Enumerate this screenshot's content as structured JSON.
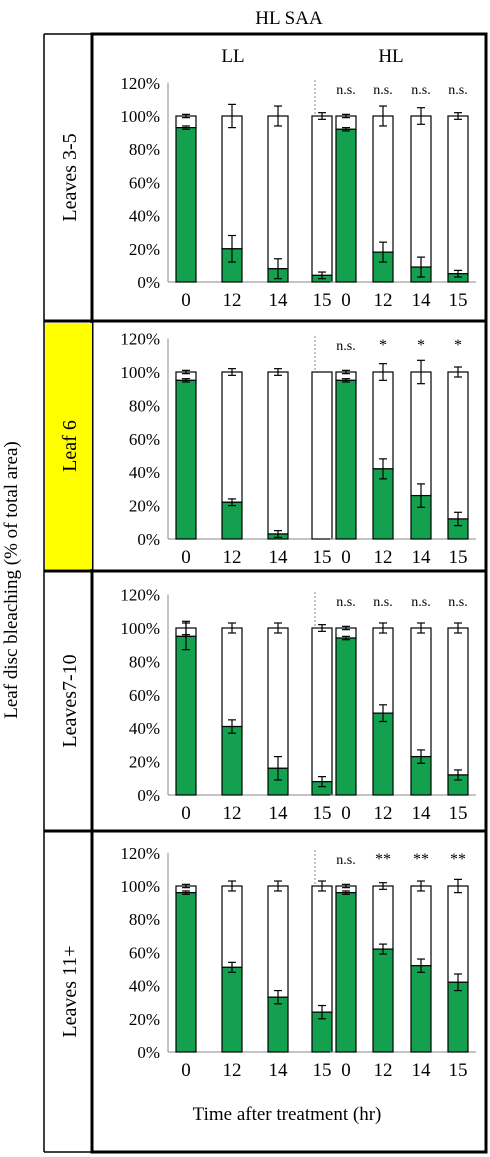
{
  "figure": {
    "title": "HL SAA",
    "ylabel": "Leaf disc bleaching (% of total area)",
    "xlabel": "Time after treatment (hr)",
    "column_titles": [
      "LL",
      "HL"
    ],
    "highlight_color": "#ffff00",
    "green_color": "#13a150",
    "white_color": "#ffffff"
  },
  "chart_data": [
    {
      "type": "bar",
      "stacked": true,
      "panel": "Leaves 3-5",
      "group": "LL",
      "highlight": false,
      "categories": [
        "0",
        "12",
        "14",
        "15"
      ],
      "yticks": [
        "0%",
        "20%",
        "40%",
        "60%",
        "80%",
        "100%",
        "120%"
      ],
      "ylim": [
        0,
        120
      ],
      "green": [
        93,
        20,
        8,
        4
      ],
      "green_err": [
        1,
        8,
        6,
        2
      ],
      "white": [
        7,
        80,
        92,
        96
      ],
      "white_err": [
        1,
        7,
        6,
        2
      ],
      "annotations": [
        "",
        "",
        "",
        ""
      ]
    },
    {
      "type": "bar",
      "stacked": true,
      "panel": "Leaves 3-5",
      "group": "HL",
      "highlight": false,
      "categories": [
        "0",
        "12",
        "14",
        "15"
      ],
      "yticks": [
        "0%",
        "20%",
        "40%",
        "60%",
        "80%",
        "100%",
        "120%"
      ],
      "ylim": [
        0,
        120
      ],
      "green": [
        92,
        18,
        9,
        5
      ],
      "green_err": [
        1,
        6,
        6,
        2
      ],
      "white": [
        8,
        82,
        91,
        95
      ],
      "white_err": [
        1,
        6,
        5,
        2
      ],
      "annotations": [
        "n.s.",
        "n.s.",
        "n.s.",
        "n.s."
      ]
    },
    {
      "type": "bar",
      "stacked": true,
      "panel": "Leaf 6",
      "group": "LL",
      "highlight": true,
      "categories": [
        "0",
        "12",
        "14",
        "15"
      ],
      "yticks": [
        "0%",
        "20%",
        "40%",
        "60%",
        "80%",
        "100%",
        "120%"
      ],
      "ylim": [
        0,
        120
      ],
      "green": [
        95,
        22,
        3,
        0
      ],
      "green_err": [
        1,
        2,
        2,
        0
      ],
      "white": [
        5,
        78,
        97,
        100
      ],
      "white_err": [
        1,
        2,
        2,
        0
      ],
      "annotations": [
        "",
        "",
        "",
        ""
      ]
    },
    {
      "type": "bar",
      "stacked": true,
      "panel": "Leaf 6",
      "group": "HL",
      "highlight": true,
      "categories": [
        "0",
        "12",
        "14",
        "15"
      ],
      "yticks": [
        "0%",
        "20%",
        "40%",
        "60%",
        "80%",
        "100%",
        "120%"
      ],
      "ylim": [
        0,
        120
      ],
      "green": [
        95,
        42,
        26,
        12
      ],
      "green_err": [
        1,
        6,
        7,
        4
      ],
      "white": [
        5,
        58,
        74,
        88
      ],
      "white_err": [
        1,
        5,
        7,
        3
      ],
      "annotations": [
        "n.s.",
        "*",
        "*",
        "*"
      ]
    },
    {
      "type": "bar",
      "stacked": true,
      "panel": "Leaves7-10",
      "group": "LL",
      "highlight": false,
      "categories": [
        "0",
        "12",
        "14",
        "15"
      ],
      "yticks": [
        "0%",
        "20%",
        "40%",
        "60%",
        "80%",
        "100%",
        "120%"
      ],
      "ylim": [
        0,
        120
      ],
      "green": [
        95,
        41,
        16,
        8
      ],
      "green_err": [
        8,
        4,
        7,
        3
      ],
      "white": [
        5,
        59,
        84,
        92
      ],
      "white_err": [
        4,
        3,
        3,
        2
      ],
      "annotations": [
        "",
        "",
        "",
        ""
      ]
    },
    {
      "type": "bar",
      "stacked": true,
      "panel": "Leaves7-10",
      "group": "HL",
      "highlight": false,
      "categories": [
        "0",
        "12",
        "14",
        "15"
      ],
      "yticks": [
        "0%",
        "20%",
        "40%",
        "60%",
        "80%",
        "100%",
        "120%"
      ],
      "ylim": [
        0,
        120
      ],
      "green": [
        94,
        49,
        23,
        12
      ],
      "green_err": [
        1,
        5,
        4,
        3
      ],
      "white": [
        6,
        51,
        77,
        88
      ],
      "white_err": [
        1,
        3,
        3,
        3
      ],
      "annotations": [
        "n.s.",
        "n.s.",
        "n.s.",
        "n.s."
      ]
    },
    {
      "type": "bar",
      "stacked": true,
      "panel": "Leaves 11+",
      "group": "LL",
      "highlight": false,
      "categories": [
        "0",
        "12",
        "14",
        "15"
      ],
      "yticks": [
        "0%",
        "20%",
        "40%",
        "60%",
        "80%",
        "100%",
        "120%"
      ],
      "ylim": [
        0,
        120
      ],
      "green": [
        96,
        51,
        33,
        24
      ],
      "green_err": [
        1,
        3,
        4,
        4
      ],
      "white": [
        4,
        49,
        67,
        76
      ],
      "white_err": [
        1,
        3,
        3,
        3
      ],
      "annotations": [
        "",
        "",
        "",
        ""
      ]
    },
    {
      "type": "bar",
      "stacked": true,
      "panel": "Leaves 11+",
      "group": "HL",
      "highlight": false,
      "categories": [
        "0",
        "12",
        "14",
        "15"
      ],
      "yticks": [
        "0%",
        "20%",
        "40%",
        "60%",
        "80%",
        "100%",
        "120%"
      ],
      "ylim": [
        0,
        120
      ],
      "green": [
        96,
        62,
        52,
        42
      ],
      "green_err": [
        1,
        3,
        4,
        5
      ],
      "white": [
        4,
        38,
        48,
        58
      ],
      "white_err": [
        1,
        2,
        3,
        4
      ],
      "annotations": [
        "n.s.",
        "**",
        "**",
        "**"
      ]
    }
  ]
}
